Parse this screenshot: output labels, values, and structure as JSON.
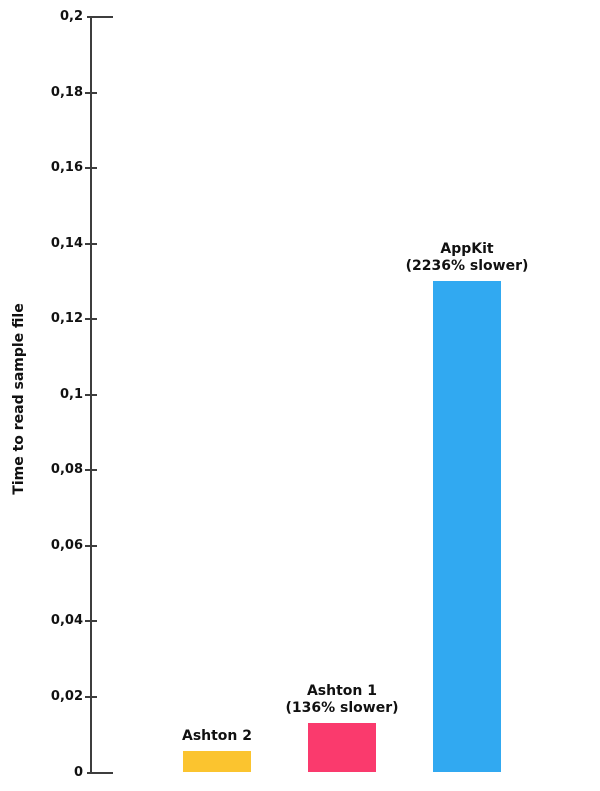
{
  "chart_data": {
    "type": "bar",
    "title": "",
    "xlabel": "",
    "ylabel": "Time to read sample file",
    "ylim": [
      0,
      0.2
    ],
    "ytick_step": 0.02,
    "decimal_separator": ",",
    "grid": false,
    "legend": false,
    "yticks": [
      {
        "value": 0,
        "label": "0"
      },
      {
        "value": 0.02,
        "label": "0,02"
      },
      {
        "value": 0.04,
        "label": "0,04"
      },
      {
        "value": 0.06,
        "label": "0,06"
      },
      {
        "value": 0.08,
        "label": "0,08"
      },
      {
        "value": 0.1,
        "label": "0,1"
      },
      {
        "value": 0.12,
        "label": "0,12"
      },
      {
        "value": 0.14,
        "label": "0,14"
      },
      {
        "value": 0.16,
        "label": "0,16"
      },
      {
        "value": 0.18,
        "label": "0,18"
      },
      {
        "value": 0.2,
        "label": "0,2"
      }
    ],
    "categories": [
      "Ashton 2",
      "Ashton 1",
      "AppKit"
    ],
    "values": [
      0.0056,
      0.0132,
      0.13
    ],
    "bars": [
      {
        "name": "ashton-2",
        "label_lines": [
          "Ashton 2"
        ],
        "value": 0.0056,
        "color": "#fbc42f"
      },
      {
        "name": "ashton-1",
        "label_lines": [
          "Ashton 1",
          "(136% slower)"
        ],
        "value": 0.0132,
        "color": "#fa3a6d"
      },
      {
        "name": "appkit",
        "label_lines": [
          "AppKit",
          "(2236% slower)"
        ],
        "value": 0.13,
        "color": "#31a9f1"
      }
    ]
  }
}
